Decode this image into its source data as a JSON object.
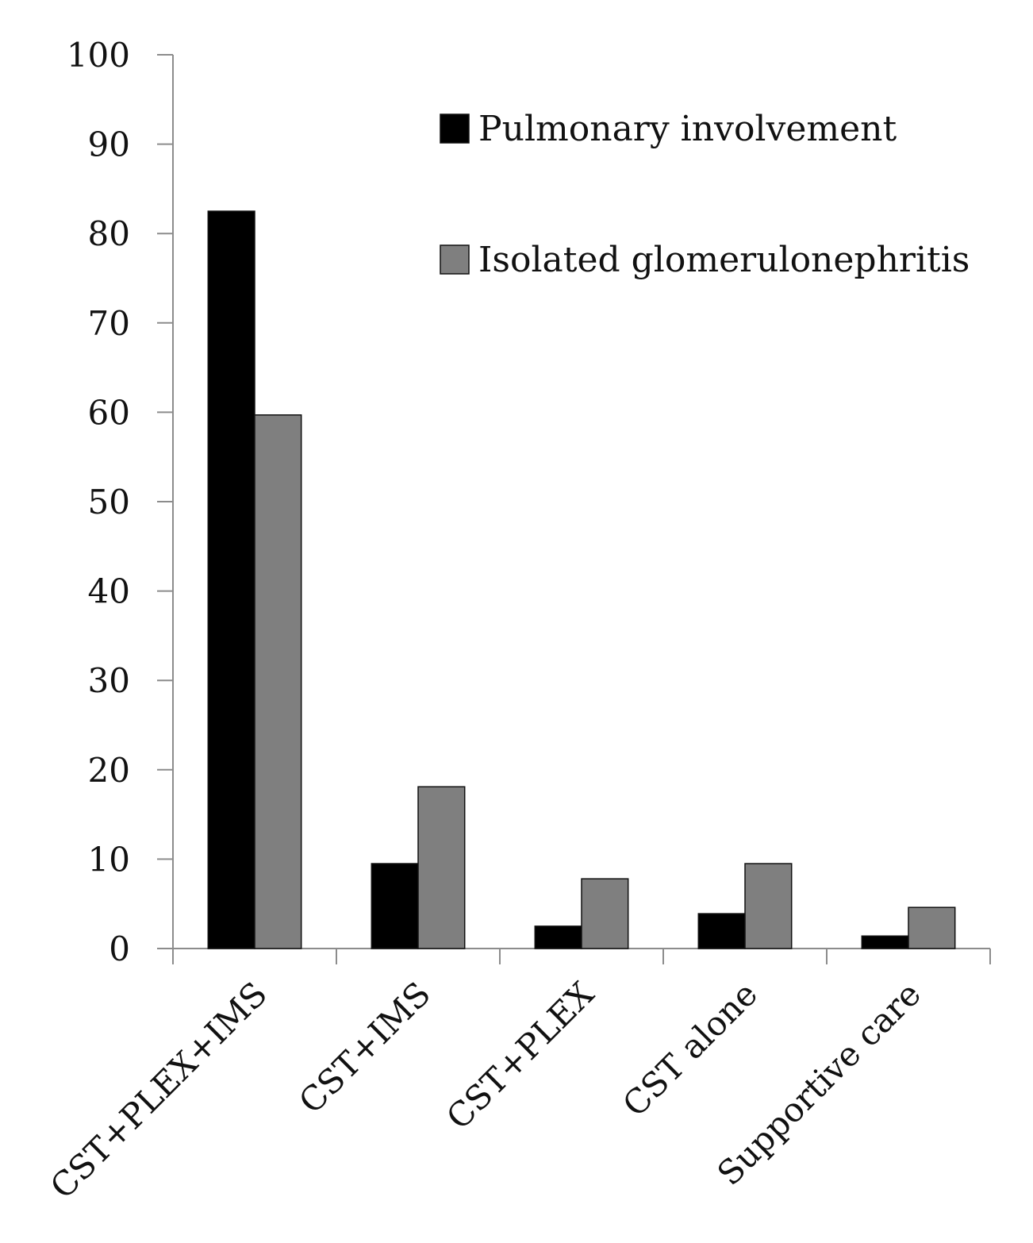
{
  "chart_data": {
    "type": "bar",
    "title": "",
    "xlabel": "",
    "ylabel": "",
    "ylim": [
      0,
      100
    ],
    "yticks": [
      0,
      10,
      20,
      30,
      40,
      50,
      60,
      70,
      80,
      90,
      100
    ],
    "categories": [
      "CST+PLEX+IMS",
      "CST+IMS",
      "CST+PLEX",
      "CST alone",
      "Supportive care"
    ],
    "series": [
      {
        "name": "Pulmonary involvement",
        "color": "#000000",
        "values": [
          82.5,
          9.5,
          2.5,
          3.9,
          1.4
        ]
      },
      {
        "name": "Isolated glomerulonephritis",
        "color": "#7f7f7f",
        "values": [
          59.7,
          18.1,
          7.8,
          9.5,
          4.6
        ]
      }
    ],
    "legend_position": "top-right",
    "grid": false
  }
}
